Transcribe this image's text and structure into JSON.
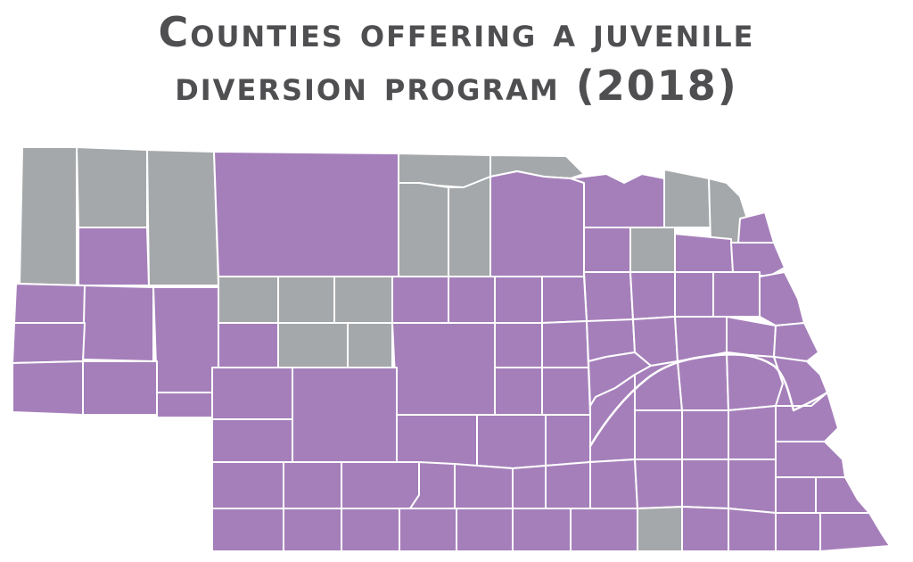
{
  "title": {
    "line1": "Counties offering a juvenile",
    "line2": "diversion program (2018)"
  },
  "colors": {
    "offering": "#a57fba",
    "not_offering": "#a5a8aa",
    "border": "#ffffff",
    "title": "#4f4f52"
  },
  "map": {
    "state": "Nebraska",
    "categories": [
      "offering",
      "not_offering"
    ]
  }
}
